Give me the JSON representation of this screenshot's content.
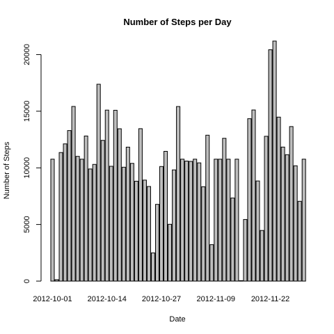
{
  "chart_data": {
    "type": "bar",
    "title": "Number of Steps per Day",
    "xlabel": "Date",
    "ylabel": "Number of Steps",
    "ylim": [
      0,
      21194
    ],
    "y_ticks": [
      0,
      5000,
      10000,
      15000,
      20000
    ],
    "bar_color": "#bebebe",
    "categories": [
      "2012-10-01",
      "2012-10-02",
      "2012-10-03",
      "2012-10-04",
      "2012-10-05",
      "2012-10-06",
      "2012-10-07",
      "2012-10-08",
      "2012-10-09",
      "2012-10-10",
      "2012-10-11",
      "2012-10-12",
      "2012-10-13",
      "2012-10-14",
      "2012-10-15",
      "2012-10-16",
      "2012-10-17",
      "2012-10-18",
      "2012-10-19",
      "2012-10-20",
      "2012-10-21",
      "2012-10-22",
      "2012-10-23",
      "2012-10-24",
      "2012-10-25",
      "2012-10-26",
      "2012-10-27",
      "2012-10-28",
      "2012-10-29",
      "2012-10-30",
      "2012-10-31",
      "2012-11-01",
      "2012-11-02",
      "2012-11-03",
      "2012-11-04",
      "2012-11-05",
      "2012-11-06",
      "2012-11-07",
      "2012-11-08",
      "2012-11-09",
      "2012-11-10",
      "2012-11-11",
      "2012-11-12",
      "2012-11-13",
      "2012-11-14",
      "2012-11-15",
      "2012-11-16",
      "2012-11-17",
      "2012-11-18",
      "2012-11-19",
      "2012-11-20",
      "2012-11-21",
      "2012-11-22",
      "2012-11-23",
      "2012-11-24",
      "2012-11-25",
      "2012-11-26",
      "2012-11-27",
      "2012-11-28",
      "2012-11-29",
      "2012-11-30"
    ],
    "values": [
      10766,
      126,
      11352,
      12116,
      13294,
      15420,
      11015,
      10766,
      12811,
      9900,
      10304,
      17382,
      12426,
      15098,
      10139,
      15084,
      13452,
      10056,
      11829,
      10395,
      8821,
      13460,
      8918,
      8355,
      2492,
      6778,
      10119,
      11458,
      5018,
      9819,
      15414,
      10766,
      10600,
      10571,
      10766,
      10439,
      8334,
      12883,
      3219,
      10766,
      10766,
      12608,
      10765,
      7336,
      10766,
      41,
      5441,
      14339,
      15110,
      8841,
      4472,
      12787,
      20427,
      21194,
      14478,
      11834,
      11162,
      13646,
      10183,
      7047,
      10766
    ],
    "x_tick_labels": [
      {
        "index": 0,
        "label": "2012-10-01"
      },
      {
        "index": 13,
        "label": "2012-10-14"
      },
      {
        "index": 26,
        "label": "2012-10-27"
      },
      {
        "index": 39,
        "label": "2012-11-09"
      },
      {
        "index": 52,
        "label": "2012-11-22"
      }
    ]
  }
}
